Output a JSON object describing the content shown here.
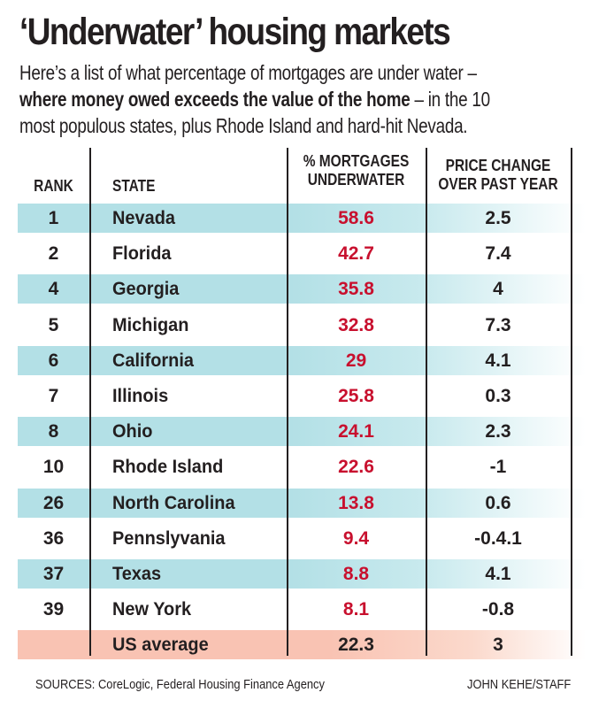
{
  "title": "‘Underwater’ housing markets",
  "subtitle": {
    "part1": "Here’s a list of what percentage of mortgages are under water –",
    "bold": "where money owed exceeds the value of the home",
    "part2": " – in the 10",
    "part3": "most populous states, plus Rhode Island and hard-hit Nevada."
  },
  "colors": {
    "band_blue": "#b3e0e6",
    "band_orange": "#f9c3b3",
    "value_red": "#c8102e",
    "text": "#231f20"
  },
  "chart_data": {
    "type": "table",
    "title": "‘Underwater’ housing markets",
    "columns": [
      "RANK",
      "STATE",
      "% MORTGAGES UNDERWATER",
      "PRICE CHANGE OVER PAST YEAR"
    ],
    "header": {
      "rank": "RANK",
      "state": "STATE",
      "pct_line1": "% MORTGAGES",
      "pct_line2": "UNDERWATER",
      "chg_line1": "PRICE CHANGE",
      "chg_line2": "OVER PAST YEAR"
    },
    "rows": [
      {
        "rank": "1",
        "state": "Nevada",
        "pct": "58.6",
        "chg": "2.5"
      },
      {
        "rank": "2",
        "state": "Florida",
        "pct": "42.7",
        "chg": "7.4"
      },
      {
        "rank": "4",
        "state": "Georgia",
        "pct": "35.8",
        "chg": "4"
      },
      {
        "rank": "5",
        "state": "Michigan",
        "pct": "32.8",
        "chg": "7.3"
      },
      {
        "rank": "6",
        "state": "California",
        "pct": "29",
        "chg": "4.1"
      },
      {
        "rank": "7",
        "state": "Illinois",
        "pct": "25.8",
        "chg": "0.3"
      },
      {
        "rank": "8",
        "state": "Ohio",
        "pct": "24.1",
        "chg": "2.3"
      },
      {
        "rank": "10",
        "state": "Rhode Island",
        "pct": "22.6",
        "chg": "-1"
      },
      {
        "rank": "26",
        "state": "North Carolina",
        "pct": "13.8",
        "chg": "0.6"
      },
      {
        "rank": "36",
        "state": "Pennslyvania",
        "pct": "9.4",
        "chg": "-0.4.1"
      },
      {
        "rank": "37",
        "state": "Texas",
        "pct": "8.8",
        "chg": "4.1"
      },
      {
        "rank": "39",
        "state": "New York",
        "pct": "8.1",
        "chg": "-0.8"
      }
    ],
    "average": {
      "rank": "",
      "state": "US average",
      "pct": "22.3",
      "chg": "3"
    }
  },
  "footer": {
    "sources": "SOURCES: CoreLogic, Federal Housing Finance Agency",
    "credit": "JOHN KEHE/STAFF"
  }
}
